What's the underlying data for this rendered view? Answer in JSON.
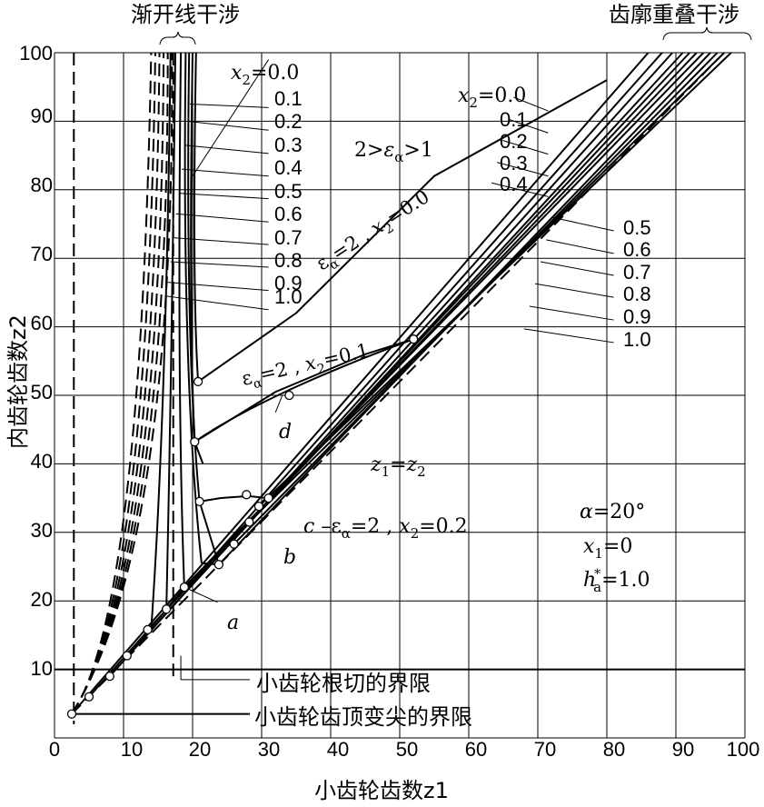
{
  "chart_data": {
    "type": "line",
    "xlabel": "小齿轮齿数z1",
    "ylabel": "内齿轮齿数z2",
    "xlim": [
      0,
      100
    ],
    "ylim": [
      0,
      100
    ],
    "grid": true,
    "x_ticks": [
      "0",
      "10",
      "20",
      "30",
      "40",
      "50",
      "60",
      "70",
      "80",
      "90",
      "100"
    ],
    "y_ticks": [
      "10",
      "20",
      "30",
      "40",
      "50",
      "60",
      "70",
      "80",
      "90",
      "100"
    ],
    "top_labels": {
      "left": "渐开线干涉",
      "right": "齿廓重叠干涉"
    },
    "left_family_labels": [
      "x2=0.0",
      "0.1",
      "0.2",
      "0.3",
      "0.4",
      "0.5",
      "0.6",
      "0.7",
      "0.8",
      "0.9",
      "1.0"
    ],
    "right_family_labels": [
      "x2=0.0",
      "0.1",
      "0.2",
      "0.3",
      "0.4",
      "0.5",
      "0.6",
      "0.7",
      "0.8",
      "0.9",
      "1.0"
    ],
    "curve_labels": {
      "range": "2>εα>1",
      "e0": "εα=2 , x2=0.0",
      "e1": "εα=2 , x2=0.1",
      "e2": "εα=2 , x2=0.2",
      "diag": "z1=z2"
    },
    "letters": [
      "a",
      "b",
      "c",
      "d"
    ],
    "parameters": [
      "α=20°",
      "x1=0",
      "h*a=1.0"
    ],
    "limit_labels": [
      "小齿轮根切的界限",
      "小齿轮齿顶变尖的界限"
    ],
    "left_series_x2": [
      0.0,
      0.1,
      0.2,
      0.3,
      0.4,
      0.5,
      0.6,
      0.7,
      0.8,
      0.9,
      1.0
    ],
    "left_series_endpoints": [
      {
        "x2": 0.0,
        "start": [
          20.5,
          100
        ],
        "end": [
          20.8,
          52.0
        ]
      },
      {
        "x2": 0.1,
        "start": [
          20.0,
          100
        ],
        "end": [
          20.3,
          43.2
        ]
      },
      {
        "x2": 0.2,
        "start": [
          19.5,
          100
        ],
        "end": [
          21.0,
          34.5
        ]
      },
      {
        "x2": 0.3,
        "start": [
          19.0,
          100
        ],
        "end": [
          21.3,
          25.5
        ]
      },
      {
        "x2": 0.5,
        "start": [
          18.3,
          100
        ],
        "end": [
          18.8,
          22.0
        ]
      },
      {
        "x2": 0.8,
        "start": [
          17.5,
          100
        ],
        "end": [
          16.2,
          18.8
        ]
      },
      {
        "x2": 1.0,
        "start": [
          16.8,
          100
        ],
        "end": [
          14.0,
          15.8
        ]
      }
    ],
    "e2_series": [
      {
        "x2": 0.0,
        "x": [
          20.8,
          35.0,
          55.0,
          80.0
        ],
        "y": [
          52.0,
          62.0,
          82.0,
          96.0
        ]
      },
      {
        "x2": 0.1,
        "x": [
          20.3,
          32.0,
          45.0,
          52.0
        ],
        "y": [
          43.2,
          50.5,
          56.0,
          58.2
        ]
      },
      {
        "x2": 0.2,
        "x": [
          21.0,
          24.0,
          28.0,
          31.0
        ],
        "y": [
          34.5,
          35.0,
          35.3,
          35.0
        ]
      }
    ],
    "points": [
      {
        "x": 2.5,
        "y": 3.5
      },
      {
        "x": 5.0,
        "y": 6.0
      },
      {
        "x": 8.0,
        "y": 9.0
      },
      {
        "x": 10.5,
        "y": 12.0
      },
      {
        "x": 13.5,
        "y": 15.8
      },
      {
        "x": 16.2,
        "y": 18.8
      },
      {
        "x": 18.8,
        "y": 22.0
      },
      {
        "x": 23.8,
        "y": 25.3
      },
      {
        "x": 26.0,
        "y": 28.3
      },
      {
        "x": 28.2,
        "y": 31.5
      },
      {
        "x": 29.6,
        "y": 33.8
      },
      {
        "x": 20.8,
        "y": 52.0
      },
      {
        "x": 20.3,
        "y": 43.2
      },
      {
        "x": 21.0,
        "y": 34.5
      },
      {
        "x": 27.8,
        "y": 35.5
      },
      {
        "x": 31.0,
        "y": 35.0
      },
      {
        "x": 52.0,
        "y": 58.2
      },
      {
        "x": 34.0,
        "y": 50.0
      }
    ]
  }
}
